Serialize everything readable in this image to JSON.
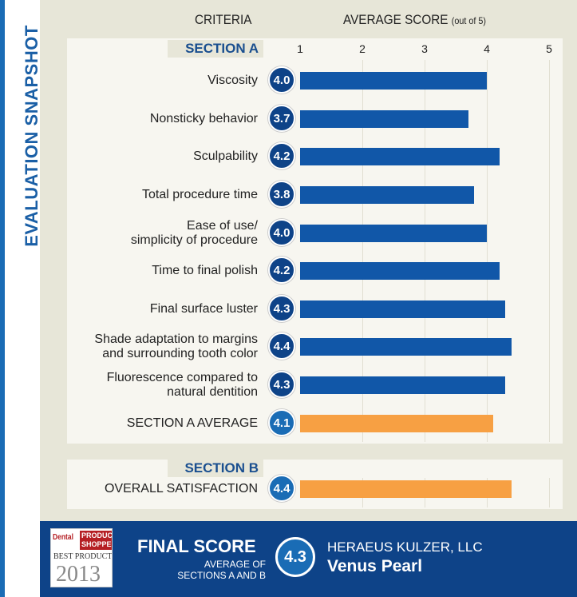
{
  "sidebar_title": "EVALUATION SNAPSHOT",
  "headers": {
    "criteria": "CRITERIA",
    "score": "AVERAGE SCORE",
    "score_note": "(out of 5)"
  },
  "colors": {
    "bar": "#1157a8",
    "average": "#f7a043",
    "footer": "#0e4388"
  },
  "chart_data": {
    "type": "bar",
    "orientation": "horizontal",
    "xlim": [
      1,
      5
    ],
    "ticks": [
      "1",
      "2",
      "3",
      "4",
      "5"
    ],
    "section_a": {
      "label": "SECTION A",
      "items": [
        {
          "label": [
            "Viscosity"
          ],
          "value": 4.0,
          "display": "4.0"
        },
        {
          "label": [
            "Nonsticky behavior"
          ],
          "value": 3.7,
          "display": "3.7"
        },
        {
          "label": [
            "Sculpability"
          ],
          "value": 4.2,
          "display": "4.2"
        },
        {
          "label": [
            "Total procedure time"
          ],
          "value": 3.8,
          "display": "3.8"
        },
        {
          "label": [
            "Ease of use/",
            "simplicity of procedure"
          ],
          "value": 4.0,
          "display": "4.0"
        },
        {
          "label": [
            "Time to final polish"
          ],
          "value": 4.2,
          "display": "4.2"
        },
        {
          "label": [
            "Final surface luster"
          ],
          "value": 4.3,
          "display": "4.3"
        },
        {
          "label": [
            "Shade adaptation to margins",
            "and surrounding tooth color"
          ],
          "value": 4.4,
          "display": "4.4"
        },
        {
          "label": [
            "Fluorescence compared to",
            "natural dentition"
          ],
          "value": 4.3,
          "display": "4.3"
        }
      ],
      "average": {
        "label": "SECTION A AVERAGE",
        "value": 4.1,
        "display": "4.1"
      }
    },
    "section_b": {
      "label": "SECTION B",
      "items": [
        {
          "label": "OVERALL SATISFACTION",
          "value": 4.4,
          "display": "4.4"
        }
      ]
    }
  },
  "footer": {
    "logo": {
      "line1": "Dental",
      "line2": "PRODUCT SHOPPER",
      "line3": "BEST PRODUCT",
      "year": "2013"
    },
    "final_score_label": "FINAL SCORE",
    "final_score_sub1": "AVERAGE OF",
    "final_score_sub2": "SECTIONS A AND B",
    "final_score": "4.3",
    "company": "HERAEUS KULZER, LLC",
    "product": "Venus Pearl"
  }
}
